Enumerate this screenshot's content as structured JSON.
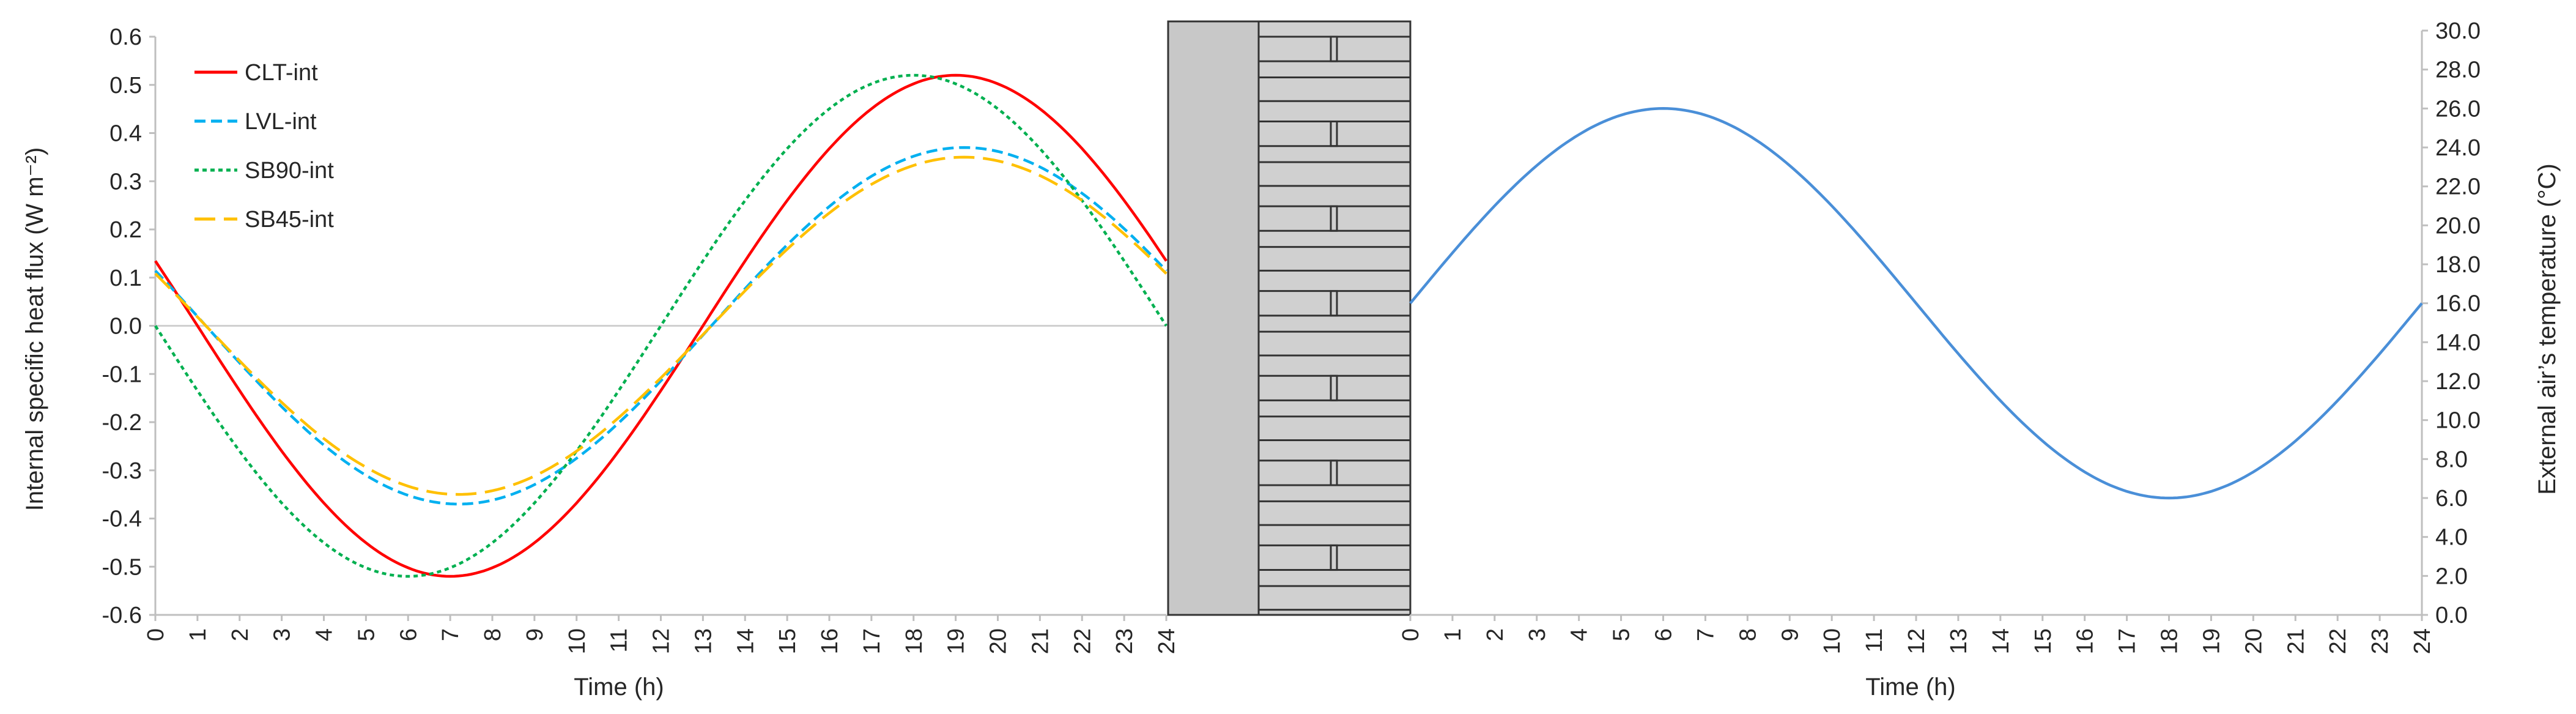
{
  "chart_data": [
    {
      "type": "line",
      "title": "",
      "xlabel": "Time (h)",
      "ylabel": "Internal specific heat flux (W m⁻²)",
      "xlim": [
        0,
        24
      ],
      "ylim": [
        -0.6,
        0.6
      ],
      "x_ticks": [
        0,
        1,
        2,
        3,
        4,
        5,
        6,
        7,
        8,
        9,
        10,
        11,
        12,
        13,
        14,
        15,
        16,
        17,
        18,
        19,
        20,
        21,
        22,
        23,
        24
      ],
      "y_ticks": [
        -0.6,
        -0.5,
        -0.4,
        -0.3,
        -0.2,
        -0.1,
        0,
        0.1,
        0.2,
        0.3,
        0.4,
        0.5,
        0.6
      ],
      "y_tick_labels": [
        "-0.6",
        "-0.5",
        "-0.4",
        "-0.3",
        "-0.2",
        "-0.1",
        "0.0",
        "0.1",
        "0.2",
        "0.3",
        "0.4",
        "0.5",
        "0.6"
      ],
      "grid": false,
      "zero_line": true,
      "legend": "top-left",
      "series": [
        {
          "name": "CLT-int",
          "color": "#ff0000",
          "dash": "solid",
          "amplitude": 0.52,
          "peak_hour": 19.0,
          "x": [
            0,
            1,
            2,
            3,
            4,
            5,
            6,
            7,
            8,
            9,
            10,
            11,
            12,
            13,
            14,
            15,
            16,
            17,
            18,
            19,
            20,
            21,
            22,
            23,
            24
          ],
          "y": [
            0.12,
            0.01,
            -0.11,
            -0.23,
            -0.33,
            -0.42,
            -0.48,
            -0.52,
            -0.51,
            -0.47,
            -0.39,
            -0.28,
            -0.15,
            0.0,
            0.14,
            0.28,
            0.39,
            0.47,
            0.51,
            0.52,
            0.48,
            0.42,
            0.33,
            0.23,
            0.12
          ]
        },
        {
          "name": "LVL-int",
          "color": "#00b0f0",
          "dash": "dashed",
          "amplitude": 0.37,
          "peak_hour": 19.2,
          "x": [
            0,
            1,
            2,
            3,
            4,
            5,
            6,
            7,
            8,
            9,
            10,
            11,
            12,
            13,
            14,
            15,
            16,
            17,
            18,
            19,
            20,
            21,
            22,
            23,
            24
          ],
          "y": [
            0.11,
            0.02,
            -0.08,
            -0.17,
            -0.25,
            -0.31,
            -0.35,
            -0.37,
            -0.36,
            -0.33,
            -0.27,
            -0.19,
            -0.1,
            0.0,
            0.11,
            0.2,
            0.28,
            0.34,
            0.37,
            0.37,
            0.35,
            0.3,
            0.23,
            0.17,
            0.11
          ]
        },
        {
          "name": "SB90-int",
          "color": "#00b050",
          "dash": "dotted",
          "amplitude": 0.52,
          "peak_hour": 18.0,
          "x": [
            0,
            1,
            2,
            3,
            4,
            5,
            6,
            7,
            8,
            9,
            10,
            11,
            12,
            13,
            14,
            15,
            16,
            17,
            18,
            19,
            20,
            21,
            22,
            23,
            24
          ],
          "y": [
            -0.01,
            -0.15,
            -0.27,
            -0.38,
            -0.46,
            -0.51,
            -0.52,
            -0.5,
            -0.44,
            -0.35,
            -0.24,
            -0.12,
            0.01,
            0.15,
            0.27,
            0.38,
            0.46,
            0.51,
            0.52,
            0.5,
            0.44,
            0.35,
            0.24,
            0.12,
            -0.01
          ]
        },
        {
          "name": "SB45-int",
          "color": "#ffc000",
          "dash": "longdash",
          "amplitude": 0.35,
          "peak_hour": 19.2,
          "x": [
            0,
            1,
            2,
            3,
            4,
            5,
            6,
            7,
            8,
            9,
            10,
            11,
            12,
            13,
            14,
            15,
            16,
            17,
            18,
            19,
            20,
            21,
            22,
            23,
            24
          ],
          "y": [
            0.11,
            0.02,
            -0.07,
            -0.16,
            -0.23,
            -0.3,
            -0.33,
            -0.35,
            -0.34,
            -0.31,
            -0.26,
            -0.19,
            -0.1,
            0.0,
            0.1,
            0.19,
            0.26,
            0.31,
            0.34,
            0.35,
            0.33,
            0.29,
            0.23,
            0.16,
            0.11
          ]
        }
      ]
    },
    {
      "type": "line",
      "title": "",
      "xlabel": "Time (h)",
      "ylabel": "External air’s temperature (°C)",
      "xlim": [
        0,
        24
      ],
      "ylim": [
        0,
        30
      ],
      "x_ticks": [
        0,
        1,
        2,
        3,
        4,
        5,
        6,
        7,
        8,
        9,
        10,
        11,
        12,
        13,
        14,
        15,
        16,
        17,
        18,
        19,
        20,
        21,
        22,
        23,
        24
      ],
      "y_ticks": [
        0,
        2,
        4,
        6,
        8,
        10,
        12,
        14,
        16,
        18,
        20,
        22,
        24,
        26,
        28,
        30
      ],
      "y_tick_labels": [
        "0.0",
        "2.0",
        "4.0",
        "6.0",
        "8.0",
        "10.0",
        "12.0",
        "14.0",
        "16.0",
        "18.0",
        "20.0",
        "22.0",
        "24.0",
        "26.0",
        "28.0",
        "30.0"
      ],
      "grid": false,
      "axis_side": "right",
      "series": [
        {
          "name": "",
          "color": "#4a8fd8",
          "dash": "solid",
          "mean": 16.0,
          "amplitude": 10.0,
          "peak_hour": 6.0,
          "x": [
            0,
            1,
            2,
            3,
            4,
            5,
            6,
            7,
            8,
            9,
            10,
            11,
            12,
            13,
            14,
            15,
            16,
            17,
            18,
            19,
            20,
            21,
            22,
            23,
            24
          ],
          "y": [
            16.0,
            18.6,
            21.0,
            23.1,
            24.7,
            25.7,
            26.0,
            25.7,
            24.7,
            23.1,
            21.0,
            18.6,
            16.0,
            13.4,
            11.0,
            8.9,
            7.3,
            6.3,
            6.0,
            6.3,
            7.3,
            8.9,
            11.0,
            13.4,
            16.0
          ]
        }
      ]
    }
  ],
  "wall_section": {
    "left_layer_color": "#c8c8c8",
    "right_layer_color": "#d0d0d0",
    "outline_color": "#333333",
    "panel_count": 7
  }
}
